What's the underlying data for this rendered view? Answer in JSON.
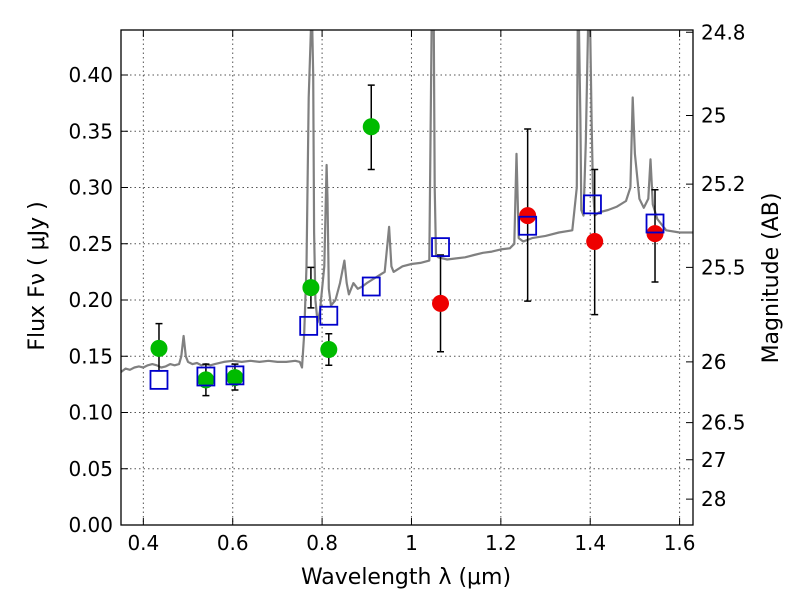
{
  "chart_data": {
    "type": "scatter",
    "xlabel": "Wavelength  λ (μm)",
    "ylabel": "Flux  Fν  ( μJy )",
    "ylabel_right": "Magnitude (AB)",
    "xlim": [
      0.35,
      1.63
    ],
    "ylim": [
      0.0,
      0.44
    ],
    "grid": true,
    "x_ticks": [
      0.4,
      0.6,
      0.8,
      1.0,
      1.2,
      1.4,
      1.6
    ],
    "x_tick_labels": [
      "0.4",
      "0.6",
      "0.8",
      "1",
      "1.2",
      "1.4",
      "1.6"
    ],
    "y_ticks": [
      0.0,
      0.05,
      0.1,
      0.15,
      0.2,
      0.25,
      0.3,
      0.35,
      0.4
    ],
    "y_tick_labels": [
      "0.00",
      "0.05",
      "0.10",
      "0.15",
      "0.20",
      "0.25",
      "0.30",
      "0.35",
      "0.40"
    ],
    "right_ticks": [
      {
        "label": "24.8",
        "flux": 0.438
      },
      {
        "label": "25",
        "flux": 0.364
      },
      {
        "label": "25.2",
        "flux": 0.303
      },
      {
        "label": "25.5",
        "flux": 0.229
      },
      {
        "label": "26",
        "flux": 0.145
      },
      {
        "label": "26.5",
        "flux": 0.091
      },
      {
        "label": "27",
        "flux": 0.058
      },
      {
        "label": "28",
        "flux": 0.023
      }
    ],
    "colors": {
      "template": "#808080",
      "green": "#00bb00",
      "red": "#ee0000",
      "model_box": "#0000cc",
      "errorbar": "#000000",
      "grid": "#555555"
    },
    "series": [
      {
        "name": "template_spectrum",
        "kind": "line",
        "x": [
          0.35,
          0.36,
          0.37,
          0.38,
          0.39,
          0.4,
          0.41,
          0.42,
          0.43,
          0.44,
          0.45,
          0.46,
          0.47,
          0.48,
          0.485,
          0.49,
          0.495,
          0.5,
          0.51,
          0.52,
          0.53,
          0.54,
          0.55,
          0.56,
          0.58,
          0.6,
          0.62,
          0.64,
          0.66,
          0.68,
          0.7,
          0.72,
          0.74,
          0.75,
          0.755,
          0.76,
          0.765,
          0.77,
          0.775,
          0.778,
          0.78,
          0.782,
          0.785,
          0.79,
          0.795,
          0.8,
          0.805,
          0.81,
          0.812,
          0.815,
          0.82,
          0.83,
          0.84,
          0.85,
          0.855,
          0.86,
          0.87,
          0.88,
          0.89,
          0.9,
          0.92,
          0.94,
          0.95,
          0.955,
          0.96,
          0.98,
          1.0,
          1.02,
          1.04,
          1.045,
          1.048,
          1.05,
          1.052,
          1.055,
          1.06,
          1.08,
          1.1,
          1.12,
          1.14,
          1.16,
          1.18,
          1.2,
          1.22,
          1.23,
          1.235,
          1.24,
          1.25,
          1.27,
          1.3,
          1.33,
          1.36,
          1.37,
          1.372,
          1.375,
          1.378,
          1.38,
          1.385,
          1.39,
          1.395,
          1.4,
          1.403,
          1.406,
          1.41,
          1.42,
          1.44,
          1.46,
          1.48,
          1.49,
          1.495,
          1.5,
          1.51,
          1.52,
          1.53,
          1.535,
          1.54,
          1.55,
          1.57,
          1.6,
          1.63
        ],
        "y": [
          0.136,
          0.139,
          0.138,
          0.14,
          0.141,
          0.14,
          0.142,
          0.143,
          0.142,
          0.14,
          0.141,
          0.143,
          0.142,
          0.143,
          0.15,
          0.168,
          0.15,
          0.145,
          0.143,
          0.144,
          0.142,
          0.143,
          0.142,
          0.143,
          0.145,
          0.146,
          0.145,
          0.146,
          0.145,
          0.146,
          0.145,
          0.145,
          0.146,
          0.145,
          0.14,
          0.17,
          0.23,
          0.38,
          0.44,
          0.44,
          0.4,
          0.26,
          0.2,
          0.18,
          0.19,
          0.21,
          0.23,
          0.32,
          0.29,
          0.21,
          0.195,
          0.2,
          0.215,
          0.235,
          0.215,
          0.205,
          0.215,
          0.21,
          0.212,
          0.215,
          0.22,
          0.225,
          0.265,
          0.23,
          0.225,
          0.23,
          0.232,
          0.233,
          0.235,
          0.44,
          0.44,
          0.44,
          0.3,
          0.24,
          0.238,
          0.236,
          0.237,
          0.238,
          0.24,
          0.242,
          0.243,
          0.245,
          0.246,
          0.25,
          0.33,
          0.255,
          0.252,
          0.255,
          0.257,
          0.26,
          0.262,
          0.3,
          0.44,
          0.44,
          0.36,
          0.28,
          0.275,
          0.34,
          0.44,
          0.44,
          0.36,
          0.3,
          0.275,
          0.278,
          0.28,
          0.283,
          0.288,
          0.3,
          0.38,
          0.33,
          0.29,
          0.282,
          0.29,
          0.325,
          0.285,
          0.272,
          0.262,
          0.26,
          0.26
        ]
      },
      {
        "name": "observed_green",
        "kind": "points",
        "x": [
          0.435,
          0.54,
          0.605,
          0.775,
          0.815,
          0.91
        ],
        "y": [
          0.157,
          0.129,
          0.131,
          0.211,
          0.156,
          0.354
        ],
        "err_low": [
          0.137,
          0.115,
          0.12,
          0.193,
          0.142,
          0.316
        ],
        "err_high": [
          0.179,
          0.143,
          0.143,
          0.229,
          0.17,
          0.391
        ]
      },
      {
        "name": "observed_red",
        "kind": "points",
        "x": [
          1.065,
          1.26,
          1.41,
          1.545
        ],
        "y": [
          0.197,
          0.275,
          0.252,
          0.259
        ],
        "err_low": [
          0.154,
          0.199,
          0.187,
          0.216
        ],
        "err_high": [
          0.24,
          0.352,
          0.316,
          0.298
        ]
      },
      {
        "name": "model_photometry",
        "kind": "squares",
        "x": [
          0.435,
          0.54,
          0.605,
          0.77,
          0.815,
          0.91,
          1.065,
          1.26,
          1.405,
          1.545
        ],
        "y": [
          0.129,
          0.132,
          0.133,
          0.177,
          0.186,
          0.212,
          0.247,
          0.266,
          0.285,
          0.268
        ]
      }
    ]
  }
}
